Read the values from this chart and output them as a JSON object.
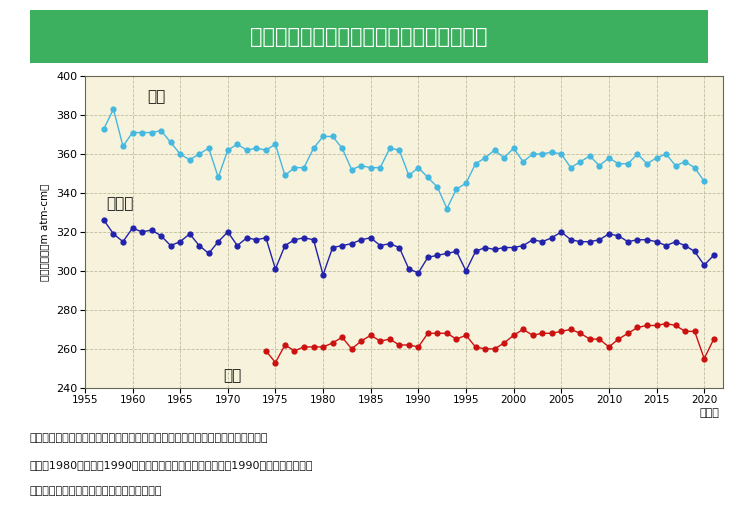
{
  "title": "日本国内のオゾン全量年平均値の経年変化",
  "title_bg_color": "#3db060",
  "title_text_color": "#ffffff",
  "plot_bg_color": "#f7f2dc",
  "outer_bg_color": "#ffffff",
  "ylabel_parts": [
    "オ",
    "ゾ",
    "ン",
    "全",
    "量",
    "（",
    "m",
    " ",
    "a",
    "t",
    "m",
    "-",
    "c",
    "m",
    "）"
  ],
  "ylabel": "オゾン全量（m atm-cm）",
  "xlabel": "（年）",
  "xlim": [
    1955,
    2022
  ],
  "ylim": [
    240,
    400
  ],
  "xticks": [
    1955,
    1960,
    1965,
    1970,
    1975,
    1980,
    1985,
    1990,
    1995,
    2000,
    2005,
    2010,
    2015,
    2020
  ],
  "yticks": [
    240,
    260,
    280,
    300,
    320,
    340,
    360,
    380,
    400
  ],
  "sapporo_color": "#45b8e0",
  "tsukuba_color": "#2222aa",
  "naha_color": "#cc1111",
  "sapporo_label": "札幌",
  "tsukuba_label": "つくば",
  "naha_label": "那覇",
  "sapporo_x": [
    1957,
    1958,
    1959,
    1960,
    1961,
    1962,
    1963,
    1964,
    1965,
    1966,
    1967,
    1968,
    1969,
    1970,
    1971,
    1972,
    1973,
    1974,
    1975,
    1976,
    1977,
    1978,
    1979,
    1980,
    1981,
    1982,
    1983,
    1984,
    1985,
    1986,
    1987,
    1988,
    1989,
    1990,
    1991,
    1992,
    1993,
    1994,
    1995,
    1996,
    1997,
    1998,
    1999,
    2000,
    2001,
    2002,
    2003,
    2004,
    2005,
    2006,
    2007,
    2008,
    2009,
    2010,
    2011,
    2012,
    2013,
    2014,
    2015,
    2016,
    2017,
    2018,
    2019,
    2020
  ],
  "sapporo_y": [
    373,
    383,
    364,
    371,
    371,
    371,
    372,
    366,
    360,
    357,
    360,
    363,
    348,
    362,
    365,
    362,
    363,
    362,
    365,
    349,
    353,
    353,
    363,
    369,
    369,
    363,
    352,
    354,
    353,
    353,
    363,
    362,
    349,
    353,
    348,
    343,
    332,
    342,
    345,
    355,
    358,
    362,
    358,
    363,
    356,
    360,
    360,
    361,
    360,
    353,
    356,
    359,
    354,
    358,
    355,
    355,
    360,
    355,
    358,
    360,
    354,
    356,
    353,
    346
  ],
  "tsukuba_x": [
    1957,
    1958,
    1959,
    1960,
    1961,
    1962,
    1963,
    1964,
    1965,
    1966,
    1967,
    1968,
    1969,
    1970,
    1971,
    1972,
    1973,
    1974,
    1975,
    1976,
    1977,
    1978,
    1979,
    1980,
    1981,
    1982,
    1983,
    1984,
    1985,
    1986,
    1987,
    1988,
    1989,
    1990,
    1991,
    1992,
    1993,
    1994,
    1995,
    1996,
    1997,
    1998,
    1999,
    2000,
    2001,
    2002,
    2003,
    2004,
    2005,
    2006,
    2007,
    2008,
    2009,
    2010,
    2011,
    2012,
    2013,
    2014,
    2015,
    2016,
    2017,
    2018,
    2019,
    2020,
    2021
  ],
  "tsukuba_y": [
    326,
    319,
    315,
    322,
    320,
    321,
    318,
    313,
    315,
    319,
    313,
    309,
    315,
    320,
    313,
    317,
    316,
    317,
    301,
    313,
    316,
    317,
    316,
    298,
    312,
    313,
    314,
    316,
    317,
    313,
    314,
    312,
    301,
    299,
    307,
    308,
    309,
    310,
    300,
    310,
    312,
    311,
    312,
    312,
    313,
    316,
    315,
    317,
    320,
    316,
    315,
    315,
    316,
    319,
    318,
    315,
    316,
    316,
    315,
    313,
    315,
    313,
    310,
    303,
    308
  ],
  "naha_x": [
    1974,
    1975,
    1976,
    1977,
    1978,
    1979,
    1980,
    1981,
    1982,
    1983,
    1984,
    1985,
    1986,
    1987,
    1988,
    1989,
    1990,
    1991,
    1992,
    1993,
    1994,
    1995,
    1996,
    1997,
    1998,
    1999,
    2000,
    2001,
    2002,
    2003,
    2004,
    2005,
    2006,
    2007,
    2008,
    2009,
    2010,
    2011,
    2012,
    2013,
    2014,
    2015,
    2016,
    2017,
    2018,
    2019,
    2020,
    2021
  ],
  "naha_y": [
    259,
    253,
    262,
    259,
    261,
    261,
    261,
    263,
    266,
    260,
    264,
    267,
    264,
    265,
    262,
    262,
    261,
    268,
    268,
    268,
    265,
    267,
    261,
    260,
    260,
    263,
    267,
    270,
    267,
    268,
    268,
    269,
    270,
    268,
    265,
    265,
    261,
    265,
    268,
    271,
    272,
    272,
    273,
    272,
    269,
    269,
    255,
    265
  ],
  "caption_line1": "国内のオゾン全量（地点の上空に存在するオゾンの総量）は、札幌とつくばにお",
  "caption_line2": "いて、1980年代から1990年代半ばにかけて減少しました。1990年代半ば以降は、",
  "caption_line3": "国内３地点ともにわずかに回復しています。"
}
